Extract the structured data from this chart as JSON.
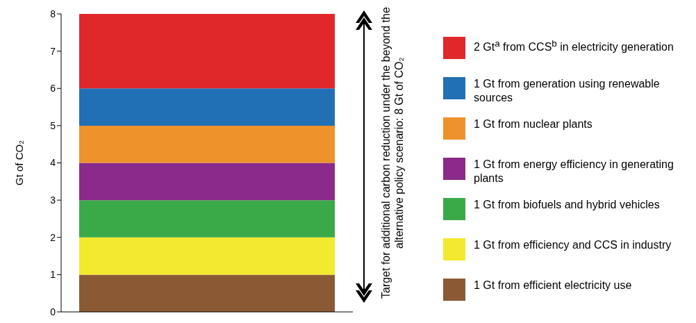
{
  "chart_data": {
    "type": "bar",
    "stacked": true,
    "ylabel": "Gt of CO₂",
    "categories": [
      null
    ],
    "ylim": [
      0,
      8
    ],
    "yticks": [
      0,
      1,
      2,
      3,
      4,
      5,
      6,
      7,
      8
    ],
    "grid": false,
    "legend": "right",
    "series": [
      {
        "name": "1 Gt from efficient electricity use",
        "color": "#8b5a35",
        "values": [
          1
        ]
      },
      {
        "name": "1 Gt from efficiency and CCS in industry",
        "color": "#f3e92e",
        "values": [
          1
        ]
      },
      {
        "name": "1 Gt from biofuels and hybrid vehicles",
        "color": "#3aaa49",
        "values": [
          1
        ]
      },
      {
        "name": "1 Gt from energy efficiency in generating plants",
        "color": "#8a2a8a",
        "values": [
          1
        ]
      },
      {
        "name": "1 Gt from nuclear plants",
        "color": "#ee922b",
        "values": [
          1
        ]
      },
      {
        "name": "1 Gt from generation using renewable sources",
        "color": "#2170b5",
        "values": [
          1
        ]
      },
      {
        "name": "2 Gt$^{a}$ from CCS$^{b}$ in electricity generation",
        "color": "#e0282b",
        "values": [
          2
        ]
      }
    ],
    "annotations": [
      "Target for additional carbon reduction under the beyond the alternative policy scenario: 8 Gt of CO₂"
    ]
  }
}
